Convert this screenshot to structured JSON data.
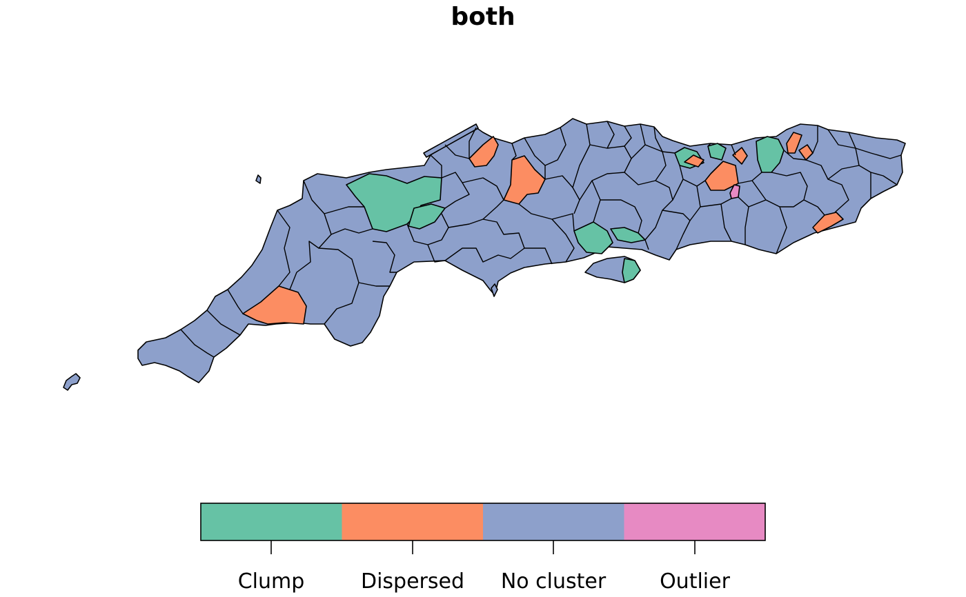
{
  "title": "both",
  "colors": {
    "clump": "#66c2a5",
    "dispersed": "#fc8d62",
    "no_cluster": "#8da0cb",
    "outlier": "#e78ac3"
  },
  "legend": [
    {
      "label": "Clump",
      "color": "#66c2a5"
    },
    {
      "label": "Dispersed",
      "color": "#fc8d62"
    },
    {
      "label": "No cluster",
      "color": "#8da0cb"
    },
    {
      "label": "Outlier",
      "color": "#e78ac3"
    }
  ]
}
